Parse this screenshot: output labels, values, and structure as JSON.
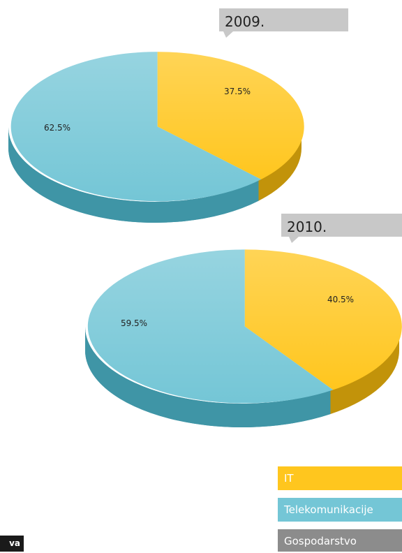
{
  "colors": {
    "it": "#ffc61e",
    "it_dark": "#c2930a",
    "telekom": "#74c6d6",
    "telekom_dark": "#3f95a6",
    "gospodarstvo": "#8c8c8c",
    "callout_bg": "#c8c8c8"
  },
  "chart_data": [
    {
      "type": "pie",
      "title": "2009.",
      "categories": [
        "IT",
        "Telekomunikacije"
      ],
      "values": [
        37.5,
        62.5
      ],
      "labels": [
        "37.5%",
        "62.5%"
      ]
    },
    {
      "type": "pie",
      "title": "2010.",
      "categories": [
        "IT",
        "Telekomunikacije"
      ],
      "values": [
        40.5,
        59.5
      ],
      "labels": [
        "40.5%",
        "59.5%"
      ]
    }
  ],
  "legend": {
    "items": [
      {
        "label": "IT",
        "color_key": "it"
      },
      {
        "label": "Telekomunikacije",
        "color_key": "telekom"
      },
      {
        "label": "Gospodarstvo",
        "color_key": "gospodarstvo"
      }
    ]
  },
  "footer": {
    "tab_text": "va"
  }
}
